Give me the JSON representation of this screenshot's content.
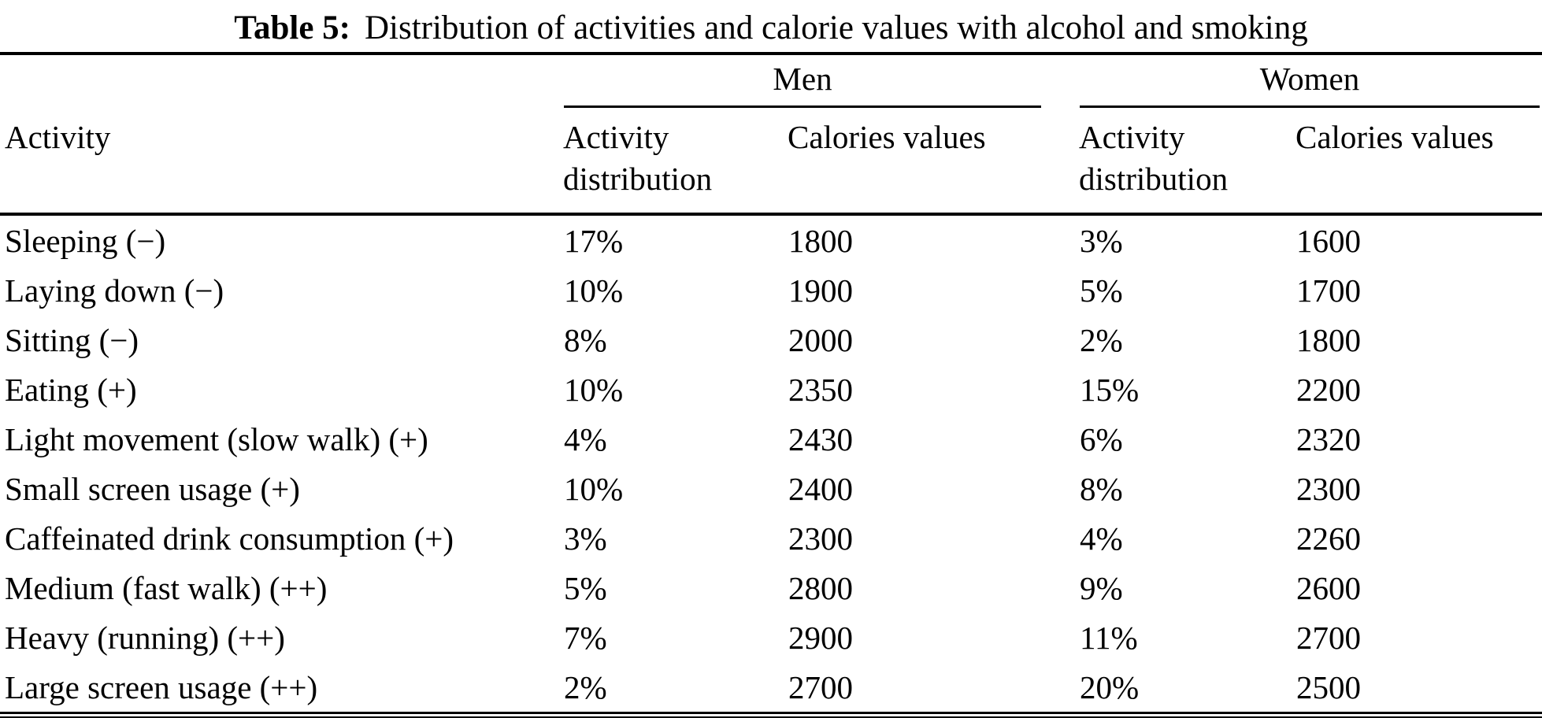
{
  "caption": {
    "label": "Table 5:",
    "text": "Distribution of activities and calorie values with alcohol and smoking"
  },
  "header": {
    "activity": "Activity",
    "men": "Men",
    "women": "Women",
    "activity_distribution": "Activity distribution",
    "calories_values": "Calories values"
  },
  "rows": [
    {
      "activity": "Sleeping (−)",
      "men_dist": "17%",
      "men_cal": "1800",
      "women_dist": "3%",
      "women_cal": "1600"
    },
    {
      "activity": "Laying down (−)",
      "men_dist": "10%",
      "men_cal": "1900",
      "women_dist": "5%",
      "women_cal": "1700"
    },
    {
      "activity": "Sitting (−)",
      "men_dist": "8%",
      "men_cal": "2000",
      "women_dist": "2%",
      "women_cal": "1800"
    },
    {
      "activity": "Eating (+)",
      "men_dist": "10%",
      "men_cal": "2350",
      "women_dist": "15%",
      "women_cal": "2200"
    },
    {
      "activity": "Light movement (slow walk) (+)",
      "men_dist": "4%",
      "men_cal": "2430",
      "women_dist": "6%",
      "women_cal": "2320"
    },
    {
      "activity": "Small screen usage (+)",
      "men_dist": "10%",
      "men_cal": "2400",
      "women_dist": "8%",
      "women_cal": "2300"
    },
    {
      "activity": "Caffeinated drink consumption (+)",
      "men_dist": "3%",
      "men_cal": "2300",
      "women_dist": "4%",
      "women_cal": "2260"
    },
    {
      "activity": "Medium (fast walk) (++)",
      "men_dist": "5%",
      "men_cal": "2800",
      "women_dist": "9%",
      "women_cal": "2600"
    },
    {
      "activity": "Heavy (running) (++)",
      "men_dist": "7%",
      "men_cal": "2900",
      "women_dist": "11%",
      "women_cal": "2700"
    },
    {
      "activity": "Large screen usage (++)",
      "men_dist": "2%",
      "men_cal": "2700",
      "women_dist": "20%",
      "women_cal": "2500"
    }
  ]
}
